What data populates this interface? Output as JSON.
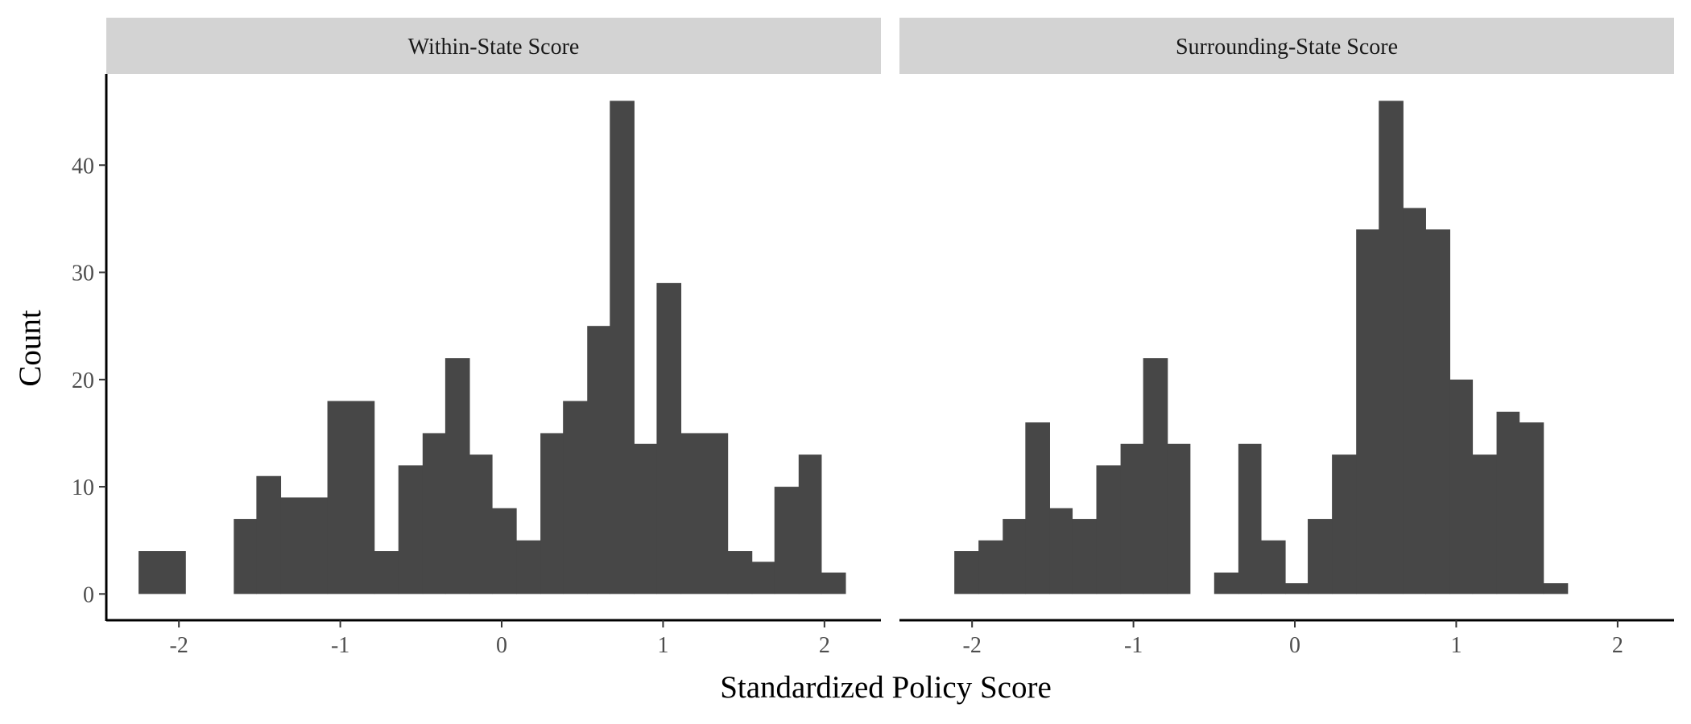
{
  "chart_data": {
    "type": "bar",
    "subtype": "histogram-faceted",
    "xlabel": "Standardized Policy Score",
    "ylabel": "Count",
    "xlim": [
      -2.45,
      2.35
    ],
    "ylim": [
      -2.3,
      48.5
    ],
    "bin_width": 0.146,
    "x_ticks": [
      -2,
      -1,
      0,
      1,
      2
    ],
    "x_tick_labels": [
      "-2",
      "-1",
      "0",
      "1",
      "2"
    ],
    "y_ticks": [
      0,
      10,
      20,
      30,
      40
    ],
    "y_tick_labels": [
      "0",
      "10",
      "20",
      "30",
      "40"
    ],
    "bar_color": "#474747",
    "strip_color": "#d3d3d3",
    "grid": false,
    "panels": [
      {
        "title": "Within-State Score",
        "bins": [
          {
            "x0": -2.25,
            "x1": -1.96,
            "count": 4
          },
          {
            "x0": -1.66,
            "x1": -1.52,
            "count": 7
          },
          {
            "x0": -1.52,
            "x1": -1.37,
            "count": 11
          },
          {
            "x0": -1.37,
            "x1": -1.08,
            "count": 9
          },
          {
            "x0": -1.08,
            "x1": -0.79,
            "count": 18
          },
          {
            "x0": -0.79,
            "x1": -0.64,
            "count": 4
          },
          {
            "x0": -0.64,
            "x1": -0.49,
            "count": 12
          },
          {
            "x0": -0.49,
            "x1": -0.35,
            "count": 15
          },
          {
            "x0": -0.35,
            "x1": -0.2,
            "count": 22
          },
          {
            "x0": -0.2,
            "x1": -0.06,
            "count": 13
          },
          {
            "x0": -0.06,
            "x1": 0.09,
            "count": 8
          },
          {
            "x0": 0.09,
            "x1": 0.24,
            "count": 5
          },
          {
            "x0": 0.24,
            "x1": 0.38,
            "count": 15
          },
          {
            "x0": 0.38,
            "x1": 0.53,
            "count": 18
          },
          {
            "x0": 0.53,
            "x1": 0.67,
            "count": 25
          },
          {
            "x0": 0.67,
            "x1": 0.82,
            "count": 46
          },
          {
            "x0": 0.82,
            "x1": 0.96,
            "count": 14
          },
          {
            "x0": 0.96,
            "x1": 1.11,
            "count": 29
          },
          {
            "x0": 1.11,
            "x1": 1.4,
            "count": 15
          },
          {
            "x0": 1.4,
            "x1": 1.55,
            "count": 4
          },
          {
            "x0": 1.55,
            "x1": 1.69,
            "count": 3
          },
          {
            "x0": 1.69,
            "x1": 1.84,
            "count": 10
          },
          {
            "x0": 1.84,
            "x1": 1.98,
            "count": 13
          },
          {
            "x0": 1.98,
            "x1": 2.13,
            "count": 2
          }
        ]
      },
      {
        "title": "Surrounding-State Score",
        "bins": [
          {
            "x0": -2.11,
            "x1": -1.96,
            "count": 4
          },
          {
            "x0": -1.96,
            "x1": -1.81,
            "count": 5
          },
          {
            "x0": -1.81,
            "x1": -1.67,
            "count": 7
          },
          {
            "x0": -1.67,
            "x1": -1.52,
            "count": 16
          },
          {
            "x0": -1.52,
            "x1": -1.38,
            "count": 8
          },
          {
            "x0": -1.38,
            "x1": -1.23,
            "count": 7
          },
          {
            "x0": -1.23,
            "x1": -1.08,
            "count": 12
          },
          {
            "x0": -1.08,
            "x1": -0.94,
            "count": 14
          },
          {
            "x0": -0.94,
            "x1": -0.79,
            "count": 22
          },
          {
            "x0": -0.79,
            "x1": -0.65,
            "count": 14
          },
          {
            "x0": -0.5,
            "x1": -0.35,
            "count": 2
          },
          {
            "x0": -0.35,
            "x1": -0.21,
            "count": 14
          },
          {
            "x0": -0.21,
            "x1": -0.06,
            "count": 5
          },
          {
            "x0": -0.06,
            "x1": 0.08,
            "count": 1
          },
          {
            "x0": 0.08,
            "x1": 0.23,
            "count": 7
          },
          {
            "x0": 0.23,
            "x1": 0.38,
            "count": 13
          },
          {
            "x0": 0.38,
            "x1": 0.52,
            "count": 34
          },
          {
            "x0": 0.52,
            "x1": 0.67,
            "count": 46
          },
          {
            "x0": 0.67,
            "x1": 0.81,
            "count": 36
          },
          {
            "x0": 0.81,
            "x1": 0.96,
            "count": 34
          },
          {
            "x0": 0.96,
            "x1": 1.1,
            "count": 20
          },
          {
            "x0": 1.1,
            "x1": 1.25,
            "count": 13
          },
          {
            "x0": 1.25,
            "x1": 1.39,
            "count": 17
          },
          {
            "x0": 1.39,
            "x1": 1.54,
            "count": 16
          },
          {
            "x0": 1.54,
            "x1": 1.69,
            "count": 1
          }
        ]
      }
    ]
  }
}
